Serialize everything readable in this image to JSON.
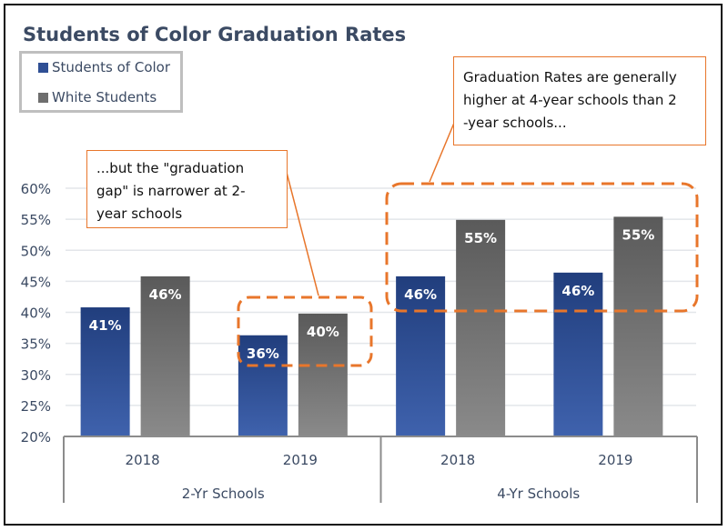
{
  "chart_data": {
    "type": "bar",
    "title": "Students of Color Graduation Rates",
    "groups": [
      {
        "label": "2-Yr Schools",
        "categories": [
          "2018",
          "2019"
        ]
      },
      {
        "label": "4-Yr Schools",
        "categories": [
          "2018",
          "2019"
        ]
      }
    ],
    "series": [
      {
        "name": "Students of Color",
        "color": "#2f4f94",
        "values": [
          40.8,
          36.3,
          45.8,
          46.4
        ],
        "labels": [
          "41%",
          "36%",
          "46%",
          "46%"
        ]
      },
      {
        "name": "White Students",
        "color": "#6e6e6e",
        "values": [
          45.8,
          39.8,
          54.9,
          55.4
        ],
        "labels": [
          "46%",
          "40%",
          "55%",
          "55%"
        ]
      }
    ],
    "ylim": [
      20,
      60
    ],
    "yticks": [
      "20%",
      "25%",
      "30%",
      "35%",
      "40%",
      "45%",
      "50%",
      "55%",
      "60%"
    ],
    "grid": true,
    "legend_position": "top-left",
    "annotations": [
      {
        "lines": [
          "...but the \"graduation",
          "gap\" is narrower at 2-",
          "year schools"
        ]
      },
      {
        "lines": [
          "Graduation Rates are generally",
          "higher at 4-year schools than 2",
          "-year schools..."
        ]
      }
    ],
    "annotation_color": "#e8762b"
  }
}
